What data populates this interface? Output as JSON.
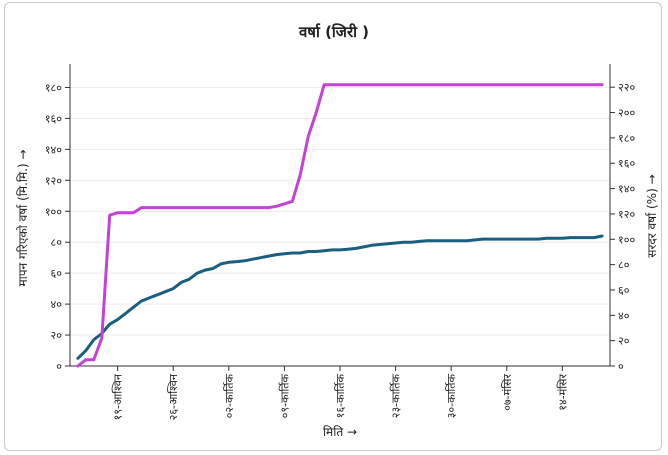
{
  "chart_data": {
    "type": "line",
    "title": "वर्षा (जिरी )",
    "xlabel": "मिति →",
    "ylabel_left": "मापन गरिएको वर्षा (मि.मि.) →",
    "ylabel_right": "सरदर वर्षा (%) →",
    "categories": [
      "१९-आश्विन",
      "२६-आश्विन",
      "०२-कार्तिक",
      "०९-कार्तिक",
      "१६-कार्तिक",
      "२३-कार्तिक",
      "३०-कार्तिक",
      "०७-मंसिर",
      "१४-मंसिर"
    ],
    "left_ticks": [
      "०",
      "२०",
      "४०",
      "६०",
      "८०",
      "१००",
      "१२०",
      "१४०",
      "१६०",
      "१८०"
    ],
    "right_ticks": [
      "०",
      "२०",
      "४०",
      "६०",
      "८०",
      "१००",
      "१२०",
      "१४०",
      "१६०",
      "१८०",
      "२००",
      "२२०"
    ],
    "ylim_left": [
      0,
      190
    ],
    "ylim_right": [
      0,
      232
    ],
    "x_day_range": [
      -6,
      62
    ],
    "series": [
      {
        "axis": "left",
        "color": "#1a5e80",
        "x": [
          -5,
          -4,
          -3,
          -2,
          -1,
          0,
          1,
          2,
          3,
          4,
          5,
          6,
          7,
          8,
          9,
          10,
          11,
          12,
          13,
          14,
          15,
          16,
          17,
          18,
          19,
          20,
          21,
          22,
          23,
          24,
          25,
          26,
          27,
          28,
          29,
          30,
          31,
          32,
          33,
          34,
          35,
          36,
          37,
          38,
          39,
          40,
          41,
          42,
          43,
          44,
          45,
          46,
          47,
          48,
          49,
          50,
          51,
          52,
          53,
          54,
          55,
          56,
          57,
          58,
          59,
          60,
          61
        ],
        "y": [
          5,
          10,
          17,
          21,
          27,
          30,
          34,
          38,
          42,
          44,
          46,
          48,
          50,
          54,
          56,
          60,
          62,
          63,
          66,
          67,
          67.5,
          68,
          69,
          70,
          71,
          72,
          72.5,
          73,
          73,
          74,
          74,
          74.5,
          75,
          75,
          75.5,
          76,
          77,
          78,
          78.5,
          79,
          79.5,
          80,
          80,
          80.5,
          81,
          81,
          81,
          81,
          81,
          81,
          81.5,
          82,
          82,
          82,
          82,
          82,
          82,
          82,
          82,
          82.5,
          82.5,
          82.5,
          83,
          83,
          83,
          83,
          84
        ]
      },
      {
        "axis": "right",
        "color": "#c542d8",
        "x": [
          -5,
          -4,
          -3,
          -2,
          -1,
          0,
          1,
          2,
          3,
          4,
          5,
          6,
          7,
          8,
          9,
          10,
          11,
          12,
          13,
          14,
          15,
          16,
          17,
          18,
          19,
          20,
          21,
          22,
          23,
          24,
          25,
          26,
          27,
          28,
          29,
          30,
          31,
          32,
          33,
          34,
          35,
          36,
          37,
          38,
          39,
          40,
          41,
          42,
          43,
          44,
          45,
          46,
          47,
          48,
          49,
          50,
          51,
          52,
          53,
          54,
          55,
          56,
          57,
          58,
          59,
          60,
          61
        ],
        "y": [
          0,
          5,
          5,
          22,
          119,
          121,
          121,
          121,
          125,
          125,
          125,
          125,
          125,
          125,
          125,
          125,
          125,
          125,
          125,
          125,
          125,
          125,
          125,
          125,
          125,
          126,
          128,
          130,
          151,
          181,
          200,
          222,
          222,
          222,
          222,
          222,
          222,
          222,
          222,
          222,
          222,
          222,
          222,
          222,
          222,
          222,
          222,
          222,
          222,
          222,
          222,
          222,
          222,
          222,
          222,
          222,
          222,
          222,
          222,
          222,
          222,
          222,
          222,
          222,
          222,
          222,
          222
        ]
      }
    ],
    "x_tick_days": [
      0,
      7,
      14,
      21,
      28,
      35,
      42,
      49,
      56
    ],
    "grid": "horizontal"
  }
}
